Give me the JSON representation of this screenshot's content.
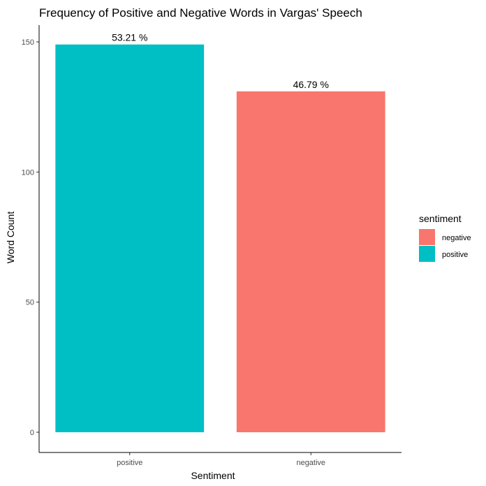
{
  "chart_data": {
    "type": "bar",
    "title": "Frequency of Positive and Negative Words in Vargas' Speech",
    "xlabel": "Sentiment",
    "ylabel": "Word Count",
    "categories": [
      "positive",
      "negative"
    ],
    "values": [
      149,
      131
    ],
    "bar_labels": [
      "53.21 %",
      "46.79 %"
    ],
    "bar_colors": [
      "#00BFC4",
      "#F8766D"
    ],
    "ylim": [
      0,
      155
    ],
    "yticks": [
      0,
      50,
      100,
      150
    ],
    "grid": false,
    "legend": {
      "title": "sentiment",
      "placement": "right",
      "entries": [
        {
          "label": "negative",
          "color": "#F8766D"
        },
        {
          "label": "positive",
          "color": "#00BFC4"
        }
      ]
    }
  }
}
